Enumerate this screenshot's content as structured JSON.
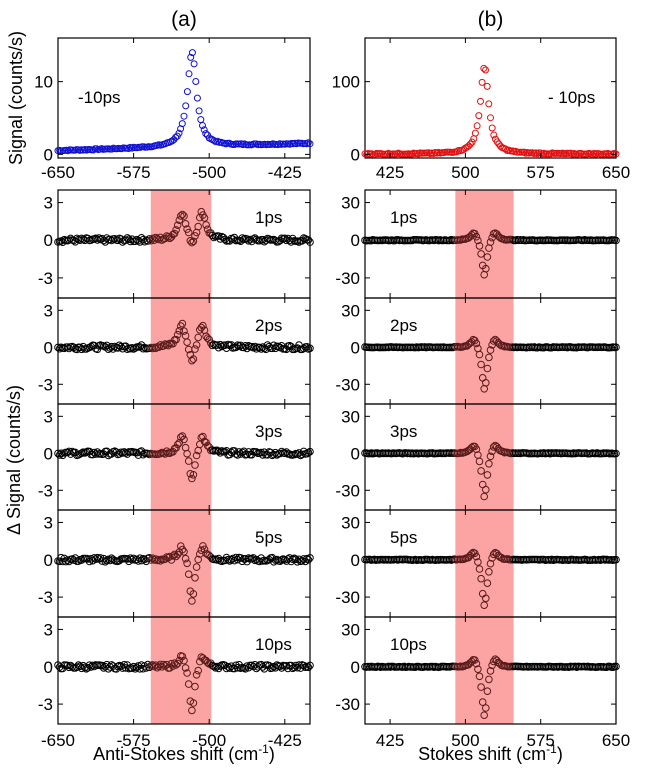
{
  "chart_data": {
    "type": "scatter",
    "columns": [
      {
        "id": "a",
        "letter": "(a)",
        "xlim": [
          -650,
          -400
        ],
        "xticks": [
          "-650",
          "-575",
          "-500",
          "-425"
        ],
        "xtick_values": [
          -650,
          -575,
          -500,
          -425
        ],
        "xlabel_main": "Anti-Stokes shift (cm",
        "xlabel_sup": "-1",
        "xlabel_close": ")",
        "band": [
          -558,
          -498
        ],
        "top_panel": {
          "annotation": "-10ps",
          "ylim": [
            -0.5,
            16
          ],
          "yticks": [
            "0",
            "10"
          ],
          "ytick_values": [
            0,
            10
          ],
          "color": "#1010d0",
          "baseline_start": 0.5,
          "baseline_end": 1.5,
          "peak_center": -517,
          "peak_amplitude": 13,
          "peak_width": 5.5
        },
        "delta_panels": [
          {
            "label": "1ps",
            "pos": 2.2,
            "neg": -0.9,
            "ylim": [
              -4.6,
              4.0
            ]
          },
          {
            "label": "2ps",
            "pos": 1.9,
            "neg": -1.8,
            "ylim": [
              -4.6,
              4.0
            ]
          },
          {
            "label": "3ps",
            "pos": 1.5,
            "neg": -2.7,
            "ylim": [
              -4.6,
              4.0
            ]
          },
          {
            "label": "5ps",
            "pos": 1.3,
            "neg": -3.7,
            "ylim": [
              -4.6,
              4.0
            ]
          },
          {
            "label": "10ps",
            "pos": 1.1,
            "neg": -4.0,
            "ylim": [
              -4.6,
              4.0
            ]
          }
        ],
        "delta_yticks": [
          "3",
          "0",
          "-3"
        ],
        "delta_ytick_values": [
          3,
          0,
          -3
        ]
      },
      {
        "id": "b",
        "letter": "(b)",
        "xlim": [
          400,
          650
        ],
        "xticks": [
          "425",
          "500",
          "575",
          "650"
        ],
        "xtick_values": [
          425,
          500,
          575,
          650
        ],
        "xlabel_main": "Stokes shift (cm",
        "xlabel_sup": "-1",
        "xlabel_close": ")",
        "band": [
          490,
          548
        ],
        "top_panel": {
          "annotation": "- 10ps",
          "ylim": [
            -5,
            160
          ],
          "yticks": [
            "0",
            "100"
          ],
          "ytick_values": [
            0,
            100
          ],
          "color": "#e01010",
          "baseline_start": 0.5,
          "baseline_end": 0.5,
          "peak_center": 519,
          "peak_amplitude": 120,
          "peak_width": 5.0
        },
        "delta_panels": [
          {
            "label": "1ps",
            "pos": 8,
            "neg": -30,
            "ylim": [
              -46,
              40
            ]
          },
          {
            "label": "2ps",
            "pos": 9,
            "neg": -37,
            "ylim": [
              -46,
              40
            ]
          },
          {
            "label": "3ps",
            "pos": 9,
            "neg": -38,
            "ylim": [
              -46,
              40
            ]
          },
          {
            "label": "5ps",
            "pos": 9,
            "neg": -40,
            "ylim": [
              -46,
              40
            ]
          },
          {
            "label": "10ps",
            "pos": 9,
            "neg": -42,
            "ylim": [
              -46,
              40
            ]
          }
        ],
        "delta_yticks": [
          "30",
          "0",
          "-30"
        ],
        "delta_ytick_values": [
          30,
          0,
          -30
        ]
      }
    ],
    "top_ylabel": "Signal (counts/s)",
    "delta_ylabel": "Δ Signal (counts/s)",
    "band_color": "#fca4a4",
    "delta_marker_color": "#000000",
    "grid": false,
    "legend": "none"
  }
}
